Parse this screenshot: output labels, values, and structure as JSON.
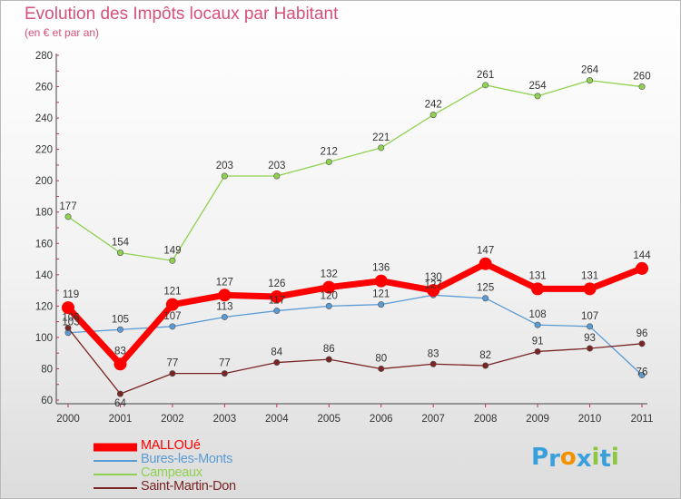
{
  "header": {
    "title": "Evolution des Impôts locaux par Habitant",
    "subtitle": "(en € et par an)"
  },
  "chart_data": {
    "type": "line",
    "title": "Evolution des Impôts locaux par Habitant",
    "subtitle": "(en € et par an)",
    "xlabel": "",
    "ylabel": "",
    "categories": [
      "2000",
      "2001",
      "2002",
      "2003",
      "2004",
      "2005",
      "2006",
      "2007",
      "2008",
      "2009",
      "2010",
      "2011"
    ],
    "ylim": [
      60,
      280
    ],
    "yticks": [
      60,
      80,
      100,
      120,
      140,
      160,
      180,
      200,
      220,
      240,
      260,
      280
    ],
    "grid": false,
    "legend_position": "bottom-left",
    "series": [
      {
        "name": "MALLOUé",
        "color": "#ff0000",
        "values": [
          119,
          83,
          121,
          127,
          126,
          132,
          136,
          130,
          147,
          131,
          131,
          144
        ]
      },
      {
        "name": "Bures-les-Monts",
        "color": "#5b9bd5",
        "values": [
          103,
          105,
          107,
          113,
          117,
          120,
          121,
          127,
          125,
          108,
          107,
          76
        ]
      },
      {
        "name": "Campeaux",
        "color": "#8fd150",
        "values": [
          177,
          154,
          149,
          203,
          203,
          212,
          221,
          242,
          261,
          254,
          264,
          260
        ]
      },
      {
        "name": "Saint-Martin-Don",
        "color": "#7a2424",
        "values": [
          106,
          64,
          77,
          77,
          84,
          86,
          80,
          83,
          82,
          91,
          93,
          96
        ]
      }
    ]
  },
  "branding": {
    "logo_letters": [
      "P",
      "r",
      "o",
      "x",
      "i",
      "t",
      "i"
    ],
    "logo_colors": [
      "#3aa0dc",
      "#3aa0dc",
      "#f29100",
      "#3aa0dc",
      "#8dc63f",
      "#3aa0dc",
      "#8dc63f"
    ]
  }
}
